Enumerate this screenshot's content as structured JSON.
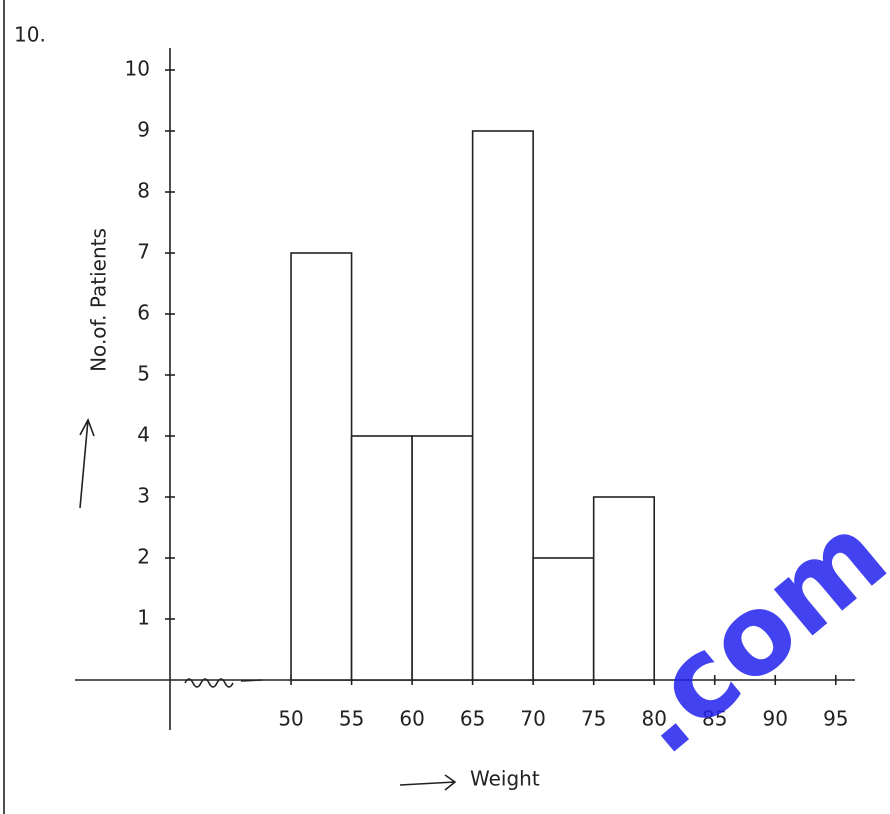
{
  "chart_data": {
    "type": "histogram",
    "question_number": "10.",
    "xlabel": "Weight",
    "ylabel": "No.of. Patients",
    "bins": [
      50,
      55,
      60,
      65,
      70,
      75,
      80
    ],
    "values": [
      7,
      4,
      4,
      9,
      2,
      3
    ],
    "color": "#ffffff",
    "xlim": [
      40,
      97
    ],
    "xticks": [
      50,
      55,
      60,
      65,
      70,
      75,
      80,
      85,
      90,
      95
    ],
    "ylim": [
      0,
      10.4
    ],
    "yticks": [
      1,
      2,
      3,
      4,
      5,
      6,
      7,
      8,
      9,
      10
    ],
    "grid": false,
    "watermark": ".com"
  }
}
